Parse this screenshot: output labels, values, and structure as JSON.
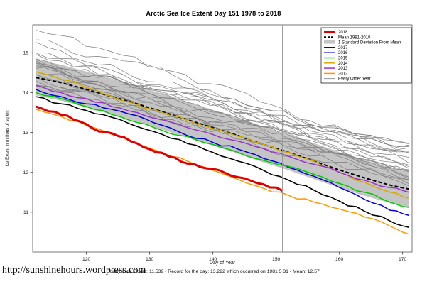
{
  "page": {
    "title": "Arctic Sea Ice Extent Day 151 1978 to 2018",
    "footer": "Today's Ice Extent: 11.539  - Record for the day: 13.222 which occurred on 1981 5 31  - Mean: 12.57",
    "url": "http://sunshinehours.wordpress.com"
  },
  "chart_data": {
    "type": "line",
    "title": "Arctic Sea Ice Extent Day 151 1978 to 2018",
    "xlabel": "Day of Year",
    "ylabel": "Ice Extent in millions of sq km",
    "xlim": [
      111.5,
      171.5
    ],
    "ylim": [
      10.0,
      15.7
    ],
    "xticks": [
      120,
      130,
      140,
      150,
      160,
      170
    ],
    "yticks": [
      11,
      12,
      13,
      14,
      15
    ],
    "grid": false,
    "vline_x": 151,
    "sd_band": {
      "label": "1 Standard Deviation From Mean",
      "halfwidth": 0.45,
      "color": "#c4c4c4"
    },
    "mean": {
      "name": "Mean 1981-2010",
      "color": "#000000",
      "dashed": true,
      "width": 2,
      "x": [
        112,
        116,
        120,
        124,
        128,
        132,
        136,
        140,
        144,
        148,
        152,
        156,
        160,
        164,
        168,
        171
      ],
      "y": [
        14.38,
        14.25,
        14.08,
        13.9,
        13.72,
        13.52,
        13.32,
        13.12,
        12.92,
        12.7,
        12.5,
        12.28,
        12.06,
        11.86,
        11.68,
        11.58
      ]
    },
    "series": [
      {
        "name": "2018",
        "color": "#dd0000",
        "width": 3,
        "seed": 2018,
        "x": [
          112,
          115,
          118,
          121,
          124,
          127,
          130,
          133,
          136,
          139,
          142,
          145,
          148,
          151
        ],
        "y": [
          13.65,
          13.52,
          13.32,
          13.1,
          12.98,
          12.78,
          12.58,
          12.4,
          12.22,
          12.1,
          11.98,
          11.85,
          11.7,
          11.539
        ]
      },
      {
        "name": "2017",
        "color": "#000000",
        "width": 1.6,
        "seed": 2017,
        "x": [
          112,
          116,
          120,
          124,
          128,
          132,
          136,
          140,
          144,
          148,
          152,
          156,
          160,
          164,
          168,
          171
        ],
        "y": [
          13.9,
          13.72,
          13.55,
          13.38,
          13.15,
          12.95,
          12.72,
          12.5,
          12.28,
          12.05,
          11.8,
          11.55,
          11.28,
          11.02,
          10.78,
          10.62
        ]
      },
      {
        "name": "2016",
        "color": "#0000dd",
        "width": 1.5,
        "seed": 2016,
        "x": [
          112,
          116,
          120,
          124,
          128,
          132,
          136,
          140,
          144,
          148,
          152,
          156,
          160,
          164,
          168,
          171
        ],
        "y": [
          14.08,
          13.9,
          13.72,
          13.58,
          13.42,
          13.18,
          12.92,
          12.75,
          12.58,
          12.35,
          12.12,
          11.9,
          11.62,
          11.32,
          11.05,
          10.92
        ]
      },
      {
        "name": "2015",
        "color": "#00cc00",
        "width": 1.5,
        "seed": 2015,
        "x": [
          112,
          116,
          120,
          124,
          128,
          132,
          136,
          140,
          144,
          148,
          152,
          156,
          160,
          164,
          168,
          171
        ],
        "y": [
          14.0,
          13.85,
          13.65,
          13.45,
          13.25,
          13.05,
          12.9,
          12.7,
          12.5,
          12.3,
          12.15,
          11.95,
          11.72,
          11.5,
          11.25,
          11.12
        ]
      },
      {
        "name": "2014",
        "color": "#d4aa00",
        "width": 1.5,
        "seed": 2014,
        "x": [
          112,
          116,
          120,
          124,
          128,
          132,
          136,
          140,
          144,
          148,
          152,
          156,
          160,
          164,
          168,
          171
        ],
        "y": [
          14.52,
          14.33,
          14.12,
          13.9,
          13.7,
          13.5,
          13.3,
          13.1,
          12.9,
          12.7,
          12.5,
          12.28,
          12.0,
          11.75,
          11.5,
          11.35
        ]
      },
      {
        "name": "2013",
        "color": "#9933cc",
        "width": 1.5,
        "seed": 2013,
        "x": [
          112,
          116,
          120,
          124,
          128,
          132,
          136,
          140,
          144,
          148,
          152,
          156,
          160,
          164,
          168,
          171
        ],
        "y": [
          14.18,
          14.0,
          13.85,
          13.65,
          13.5,
          13.32,
          13.12,
          12.95,
          12.78,
          12.6,
          12.4,
          12.2,
          12.0,
          11.8,
          11.62,
          11.5
        ]
      },
      {
        "name": "2012",
        "color": "#ff9900",
        "width": 1.5,
        "seed": 2012,
        "x": [
          112,
          116,
          120,
          124,
          128,
          132,
          136,
          140,
          144,
          148,
          152,
          156,
          160,
          164,
          168,
          171
        ],
        "y": [
          13.58,
          13.4,
          13.18,
          12.95,
          12.72,
          12.5,
          12.28,
          12.05,
          11.82,
          11.6,
          11.42,
          11.25,
          11.08,
          10.88,
          10.65,
          10.45
        ]
      }
    ],
    "background_years": {
      "name": "Every Other Year",
      "color": "#7d7d7d",
      "x_start": 112,
      "x_end": 171,
      "lines": [
        {
          "start": 15.55,
          "end": 12.55,
          "seed": 1
        },
        {
          "start": 15.35,
          "end": 12.6,
          "seed": 2
        },
        {
          "start": 15.2,
          "end": 12.3,
          "seed": 3
        },
        {
          "start": 15.1,
          "end": 12.5,
          "seed": 4
        },
        {
          "start": 15.0,
          "end": 12.15,
          "seed": 5
        },
        {
          "start": 14.95,
          "end": 12.45,
          "seed": 6
        },
        {
          "start": 14.9,
          "end": 12.05,
          "seed": 7
        },
        {
          "start": 14.82,
          "end": 12.35,
          "seed": 8
        },
        {
          "start": 14.75,
          "end": 12.55,
          "seed": 9
        },
        {
          "start": 14.7,
          "end": 12.0,
          "seed": 10
        },
        {
          "start": 14.65,
          "end": 12.3,
          "seed": 11
        },
        {
          "start": 14.6,
          "end": 12.15,
          "seed": 12
        },
        {
          "start": 14.55,
          "end": 11.9,
          "seed": 13
        },
        {
          "start": 14.5,
          "end": 12.25,
          "seed": 14
        },
        {
          "start": 14.45,
          "end": 11.85,
          "seed": 15
        },
        {
          "start": 14.4,
          "end": 12.05,
          "seed": 16
        },
        {
          "start": 14.35,
          "end": 11.8,
          "seed": 17
        },
        {
          "start": 14.28,
          "end": 12.1,
          "seed": 18
        },
        {
          "start": 14.2,
          "end": 11.75,
          "seed": 19
        },
        {
          "start": 14.12,
          "end": 11.95,
          "seed": 20
        },
        {
          "start": 14.5,
          "end": 12.7,
          "seed": 21
        },
        {
          "start": 14.9,
          "end": 12.6,
          "seed": 22
        }
      ]
    },
    "legend": {
      "position": "top-right",
      "items": [
        {
          "label": "2018",
          "type": "line",
          "color": "#dd0000",
          "width": 3
        },
        {
          "label": "Mean 1981-2010",
          "type": "dash",
          "color": "#000000",
          "width": 2
        },
        {
          "label": "1 Standard Deviation From Mean",
          "type": "box",
          "color": "#c4c4c4"
        },
        {
          "label": "2017",
          "type": "line",
          "color": "#000000",
          "width": 1.6
        },
        {
          "label": "2016",
          "type": "line",
          "color": "#0000dd",
          "width": 1.5
        },
        {
          "label": "2015",
          "type": "line",
          "color": "#00cc00",
          "width": 1.5
        },
        {
          "label": "2014",
          "type": "line",
          "color": "#d4aa00",
          "width": 1.5
        },
        {
          "label": "2013",
          "type": "line",
          "color": "#9933cc",
          "width": 1.5
        },
        {
          "label": "2012",
          "type": "line",
          "color": "#ff9900",
          "width": 1.5
        },
        {
          "label": "Every Other Year",
          "type": "line",
          "color": "#7d7d7d",
          "width": 0.8
        }
      ]
    }
  }
}
